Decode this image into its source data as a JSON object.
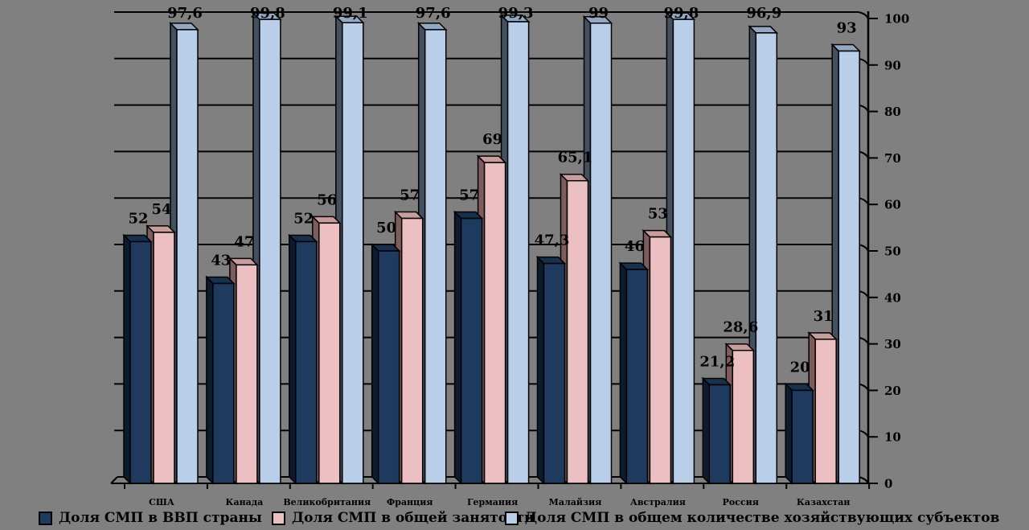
{
  "chart_data": {
    "type": "bar",
    "style": "3d-clustered",
    "title": "",
    "xlabel": "",
    "ylabel": "",
    "background": "#808080",
    "grid": true,
    "legend_position": "bottom",
    "categories": [
      "США",
      "Канада",
      "Великобритания",
      "Франция",
      "Германия",
      "Малайзия",
      "Австралия",
      "Россия",
      "Казахстан"
    ],
    "series": [
      {
        "name": "Доля СМП в ВВП страны",
        "values": [
          52,
          43,
          52,
          50,
          57,
          47.3,
          46,
          21.2,
          20
        ],
        "labels": [
          "52",
          "43",
          "52",
          "50",
          "57",
          "47,3",
          "46",
          "21,2",
          "20"
        ],
        "color": {
          "front": "#1F3A5F",
          "side": "#0D1B2E",
          "top": "#16304E"
        }
      },
      {
        "name": "Доля СМП в общей занятости",
        "values": [
          54,
          47,
          56,
          57,
          69,
          65.1,
          53,
          28.6,
          31
        ],
        "labels": [
          "54",
          "47",
          "56",
          "57",
          "69",
          "65,1",
          "53",
          "28,6",
          "31"
        ],
        "color": {
          "front": "#ECC0C2",
          "side": "#7E5B5D",
          "top": "#C89D9C"
        }
      },
      {
        "name": "Доля СМП в общем количестве хозяйствующих субъектов",
        "values": [
          97.6,
          99.8,
          99.1,
          97.6,
          99.3,
          99,
          99.8,
          96.9,
          93
        ],
        "labels": [
          "97,6",
          "99,8",
          "99,1",
          "97,6",
          "99,3",
          "99",
          "99,8",
          "96,9",
          "93"
        ],
        "color": {
          "front": "#B9CEE8",
          "side": "#43505F",
          "top": "#92A8C3"
        }
      }
    ],
    "y_axis": {
      "min": 0,
      "max": 100,
      "step": 10,
      "side": "right",
      "tick_labels": [
        "0",
        "10",
        "20",
        "30",
        "40",
        "50",
        "60",
        "70",
        "80",
        "90",
        "100"
      ]
    }
  }
}
